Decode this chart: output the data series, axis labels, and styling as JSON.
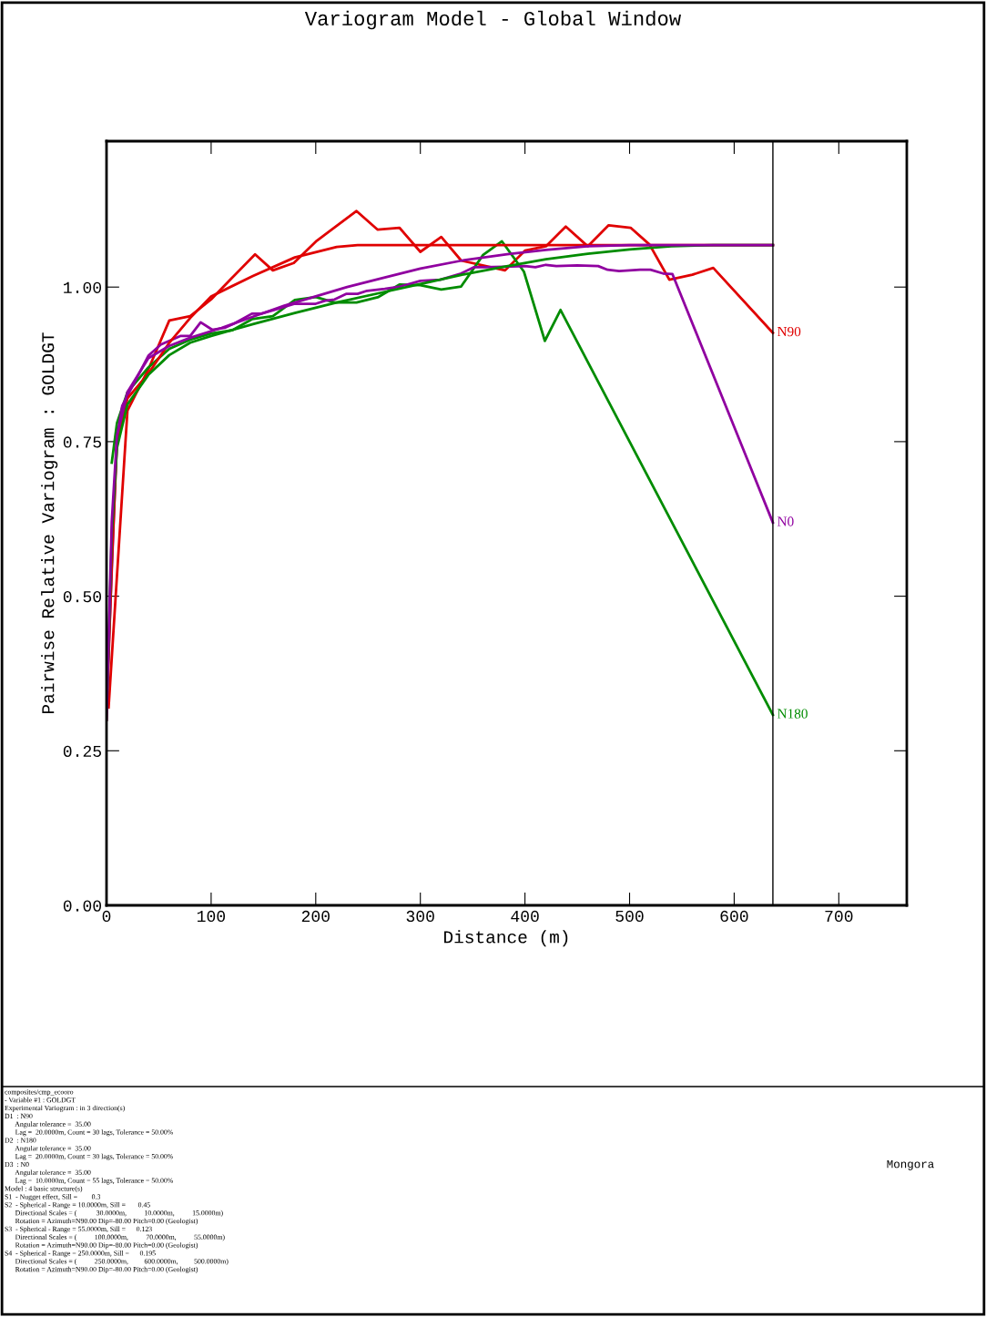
{
  "chart_data": {
    "type": "line",
    "title": "Variogram Model - Global Window",
    "xlabel": "Distance (m)",
    "ylabel": "Pairwise Relative Variogram : GOLDGT",
    "xlim": [
      0,
      765
    ],
    "ylim": [
      0,
      1.236
    ],
    "xticks": [
      0,
      100,
      200,
      300,
      400,
      500,
      600,
      700
    ],
    "yticks": [
      {
        "value": 0,
        "label": "0.00"
      },
      {
        "value": 0.25,
        "label": "0.25"
      },
      {
        "value": 0.5,
        "label": "0.50"
      },
      {
        "value": 0.75,
        "label": "0.75"
      },
      {
        "value": 1.0,
        "label": "1.00"
      }
    ],
    "grid": false,
    "legend": false,
    "marker": "none",
    "line_style": "solid",
    "ref_lines": [
      {
        "axis": "x",
        "value": 637,
        "color": "#000000"
      }
    ],
    "series": [
      {
        "name": "N90",
        "color": "#e00000",
        "x": [
          2,
          20,
          40,
          60,
          80,
          100,
          120,
          142,
          159,
          179,
          201,
          239,
          259,
          280,
          300,
          320,
          339,
          381,
          400,
          420,
          439,
          460,
          480,
          501,
          519,
          538,
          560,
          580,
          637
        ],
        "values": [
          0.32,
          0.8,
          0.867,
          0.946,
          0.953,
          0.98,
          1.015,
          1.053,
          1.027,
          1.039,
          1.075,
          1.123,
          1.093,
          1.096,
          1.057,
          1.081,
          1.043,
          1.027,
          1.059,
          1.066,
          1.098,
          1.066,
          1.1,
          1.096,
          1.069,
          1.012,
          1.02,
          1.031,
          0.926
        ]
      },
      {
        "name": "N180",
        "color": "#008c00",
        "x": [
          5,
          10,
          20,
          40,
          60,
          80,
          100,
          120,
          139,
          159,
          180,
          200,
          218,
          239,
          260,
          280,
          300,
          320,
          339,
          360,
          378,
          399,
          419,
          434,
          637
        ],
        "values": [
          0.716,
          0.78,
          0.83,
          0.87,
          0.9,
          0.915,
          0.925,
          0.93,
          0.948,
          0.953,
          0.979,
          0.984,
          0.975,
          0.975,
          0.984,
          1.004,
          1.003,
          0.996,
          1.001,
          1.052,
          1.074,
          1.025,
          0.913,
          0.963,
          0.308
        ]
      },
      {
        "name": "N0",
        "color": "#9000a0",
        "x": [
          0,
          10,
          15,
          40,
          52,
          71,
          80,
          90,
          101,
          113,
          122,
          139,
          148,
          160,
          180,
          200,
          209,
          218,
          229,
          240,
          249,
          266,
          281,
          300,
          319,
          339,
          351,
          360,
          380,
          400,
          410,
          420,
          430,
          450,
          470,
          479,
          490,
          510,
          520,
          532,
          541,
          637
        ],
        "values": [
          0.325,
          0.757,
          0.808,
          0.889,
          0.907,
          0.921,
          0.921,
          0.943,
          0.931,
          0.934,
          0.941,
          0.957,
          0.957,
          0.963,
          0.973,
          0.973,
          0.978,
          0.98,
          0.989,
          0.989,
          0.994,
          0.997,
          1.001,
          1.01,
          1.012,
          1.022,
          1.032,
          1.032,
          1.033,
          1.034,
          1.032,
          1.036,
          1.034,
          1.035,
          1.034,
          1.028,
          1.026,
          1.028,
          1.028,
          1.022,
          1.021,
          0.619
        ]
      },
      {
        "color": "#e00000",
        "x": [
          0,
          5,
          10,
          20,
          40,
          60,
          80,
          100,
          140,
          180,
          220,
          240,
          637
        ],
        "values": [
          0.3,
          0.55,
          0.75,
          0.82,
          0.86,
          0.91,
          0.95,
          0.985,
          1.018,
          1.048,
          1.065,
          1.068,
          1.068
        ]
      },
      {
        "color": "#008c00",
        "x": [
          0,
          5,
          10,
          20,
          40,
          60,
          80,
          100,
          140,
          180,
          220,
          260,
          300,
          340,
          380,
          420,
          460,
          500,
          540,
          580,
          637
        ],
        "values": [
          0.3,
          0.6,
          0.74,
          0.81,
          0.858,
          0.89,
          0.91,
          0.921,
          0.94,
          0.958,
          0.975,
          0.99,
          1.005,
          1.02,
          1.033,
          1.045,
          1.054,
          1.061,
          1.066,
          1.068,
          1.068
        ]
      },
      {
        "color": "#9000a0",
        "x": [
          0,
          5,
          10,
          20,
          40,
          60,
          80,
          110,
          140,
          170,
          200,
          230,
          260,
          300,
          340,
          383,
          420,
          460,
          500,
          637
        ],
        "values": [
          0.3,
          0.62,
          0.76,
          0.83,
          0.885,
          0.905,
          0.918,
          0.934,
          0.952,
          0.97,
          0.985,
          1.0,
          1.013,
          1.03,
          1.043,
          1.053,
          1.06,
          1.066,
          1.068,
          1.068
        ]
      }
    ],
    "annotations": [
      "composites/cmp_ecooro\n- Variable #1 : GOLDGT\nExperimental Variogram : in 3 direction(s)\nD1  : N90\n      Angular tolerance =  35.00\n      Lag =  20.0000m, Count = 30 lags, Tolerance = 50.00%\nD2  : N180\n      Angular tolerance =  35.00\n      Lag =  20.0000m, Count = 30 lags, Tolerance = 50.00%\nD3  : N0\n      Angular tolerance =  35.00\n      Lag =  10.0000m, Count = 55 lags, Tolerance = 50.00%\nModel : 4 basic structure(s)\nS1  - Nugget effect, Sill =        0.3\nS2  - Spherical - Range = 10.0000m, Sill =       0.45\n      Directional Scales = (           30.0000m,          10.0000m,          15.0000m)\n      Rotation = Azimuth=N90.00 Dip=-80.00 Pitch=0.00 (Geologist)\nS3  - Spherical - Range = 55.0000m, Sill =      0.123\n      Directional Scales = (          100.0000m,          70.0000m,          55.0000m)\n      Rotation = Azimuth=N90.00 Dip=-80.00 Pitch=0.00 (Geologist)\nS4  - Spherical - Range = 250.0000m, Sill =      0.195\n      Directional Scales = (          250.0000m,         600.0000m,         500.0000m)\n      Rotation = Azimuth=N90.00 Dip=-80.00 Pitch=0.00 (Geologist)",
      "Mongora"
    ]
  }
}
